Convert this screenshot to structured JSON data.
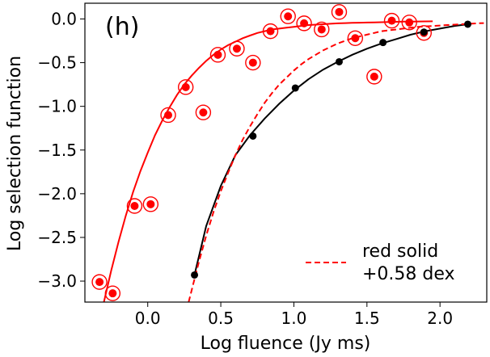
{
  "chart_data": {
    "type": "scatter",
    "panel_label": "(h)",
    "xlabel": "Log fluence (Jy ms)",
    "ylabel": "Log selection function",
    "xlim": [
      -0.43,
      2.32
    ],
    "ylim": [
      -3.24,
      0.18
    ],
    "xticks": [
      0.0,
      0.5,
      1.0,
      1.5,
      2.0
    ],
    "xtick_labels": [
      "0.0",
      "0.5",
      "1.0",
      "1.5",
      "2.0"
    ],
    "yticks": [
      0.0,
      -0.5,
      -1.0,
      -1.5,
      -2.0,
      -2.5,
      -3.0
    ],
    "ytick_labels": [
      "0.0",
      "−0.5",
      "−1.0",
      "−1.5",
      "−2.0",
      "−2.5",
      "−3.0"
    ],
    "grid": false,
    "legend": {
      "position": "bottom-right",
      "entries": [
        {
          "style": "red-dashed-line",
          "lines": [
            "red solid",
            "+0.58 dex"
          ]
        }
      ]
    },
    "series": [
      {
        "name": "red points",
        "kind": "scatter-circled",
        "color": "#ff0000",
        "x": [
          -0.33,
          -0.24,
          -0.09,
          0.02,
          0.14,
          0.26,
          0.38,
          0.48,
          0.61,
          0.72,
          0.84,
          0.96,
          1.07,
          1.19,
          1.31,
          1.42,
          1.55,
          1.67,
          1.79,
          1.89
        ],
        "y": [
          -3.01,
          -3.14,
          -2.14,
          -2.12,
          -1.1,
          -0.78,
          -1.07,
          -0.41,
          -0.34,
          -0.5,
          -0.14,
          0.03,
          -0.05,
          -0.12,
          0.08,
          -0.22,
          -0.66,
          -0.02,
          -0.04,
          -0.16
        ]
      },
      {
        "name": "black points",
        "kind": "scatter",
        "color": "#000000",
        "x": [
          0.32,
          0.72,
          1.01,
          1.31,
          1.61,
          1.89,
          2.19
        ],
        "y": [
          -2.93,
          -1.34,
          -0.79,
          -0.49,
          -0.27,
          -0.15,
          -0.06
        ]
      },
      {
        "name": "red solid",
        "kind": "line",
        "color": "#ff0000",
        "x": [
          -0.3,
          -0.25,
          -0.2,
          -0.15,
          -0.1,
          -0.05,
          0.0,
          0.05,
          0.1,
          0.15,
          0.2,
          0.25,
          0.3,
          0.35,
          0.4,
          0.45,
          0.5,
          0.55,
          0.6,
          0.65,
          0.7,
          0.75,
          0.8,
          0.85,
          0.9,
          0.95,
          1.0,
          1.05,
          1.1,
          1.15,
          1.2,
          1.25,
          1.3,
          1.35,
          1.4,
          1.45,
          1.5,
          1.55,
          1.6,
          1.65,
          1.7,
          1.75,
          1.8,
          1.85,
          1.9,
          1.95
        ],
        "y": [
          -3.24,
          -2.88,
          -2.55,
          -2.25,
          -1.98,
          -1.74,
          -1.53,
          -1.33,
          -1.16,
          -1.01,
          -0.87,
          -0.75,
          -0.65,
          -0.56,
          -0.48,
          -0.41,
          -0.35,
          -0.3,
          -0.26,
          -0.22,
          -0.19,
          -0.16,
          -0.14,
          -0.12,
          -0.11,
          -0.1,
          -0.09,
          -0.08,
          -0.07,
          -0.065,
          -0.06,
          -0.055,
          -0.05,
          -0.047,
          -0.045,
          -0.043,
          -0.041,
          -0.039,
          -0.037,
          -0.035,
          -0.033,
          -0.031,
          -0.03,
          -0.029,
          -0.028,
          -0.027
        ]
      },
      {
        "name": "black solid",
        "kind": "line",
        "color": "#000000",
        "x": [
          0.32,
          0.4,
          0.5,
          0.6,
          0.7,
          0.8,
          0.9,
          1.0,
          1.1,
          1.2,
          1.3,
          1.4,
          1.5,
          1.6,
          1.7,
          1.8,
          1.9,
          2.0,
          2.1,
          2.19
        ],
        "y": [
          -2.93,
          -2.37,
          -1.91,
          -1.56,
          -1.33,
          -1.14,
          -0.97,
          -0.82,
          -0.69,
          -0.58,
          -0.49,
          -0.41,
          -0.34,
          -0.28,
          -0.23,
          -0.18,
          -0.14,
          -0.11,
          -0.08,
          -0.06
        ]
      },
      {
        "name": "red solid +0.58 dex",
        "kind": "dashed-line",
        "color": "#ff0000",
        "x": [
          0.28,
          0.3,
          0.35,
          0.4,
          0.45,
          0.5,
          0.55,
          0.6,
          0.65,
          0.7,
          0.75,
          0.8,
          0.85,
          0.9,
          0.95,
          1.0,
          1.05,
          1.1,
          1.15,
          1.2,
          1.25,
          1.3,
          1.35,
          1.4,
          1.45,
          1.5,
          1.55,
          1.6,
          1.65,
          1.7,
          1.75,
          1.8,
          1.85,
          1.9,
          1.95,
          2.0,
          2.05,
          2.1,
          2.15,
          2.2,
          2.25,
          2.3
        ],
        "y": [
          -3.24,
          -3.11,
          -2.78,
          -2.48,
          -2.21,
          -1.97,
          -1.76,
          -1.56,
          -1.38,
          -1.23,
          -1.09,
          -0.96,
          -0.85,
          -0.75,
          -0.67,
          -0.59,
          -0.52,
          -0.46,
          -0.41,
          -0.36,
          -0.32,
          -0.28,
          -0.25,
          -0.22,
          -0.2,
          -0.18,
          -0.16,
          -0.14,
          -0.13,
          -0.12,
          -0.11,
          -0.1,
          -0.09,
          -0.085,
          -0.08,
          -0.075,
          -0.07,
          -0.065,
          -0.06,
          -0.055,
          -0.05,
          -0.047
        ]
      }
    ]
  }
}
